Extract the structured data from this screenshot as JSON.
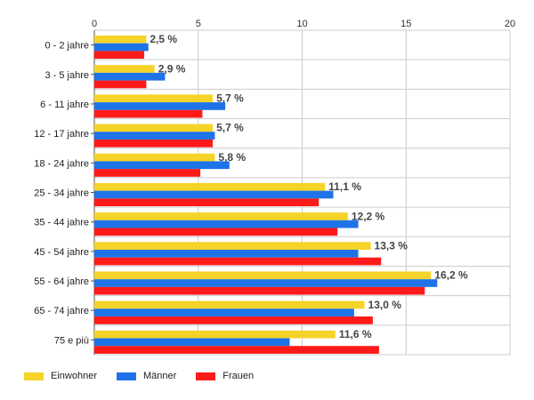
{
  "chart_data": {
    "type": "bar",
    "orientation": "horizontal",
    "categories": [
      "0 - 2 jahre",
      "3 - 5 jahre",
      "6 - 11 jahre",
      "12 - 17 jahre",
      "18 - 24 jahre",
      "25 - 34 jahre",
      "35 - 44 jahre",
      "45 - 54 jahre",
      "55 - 64 jahre",
      "65 - 74 jahre",
      "75 e più"
    ],
    "series": [
      {
        "name": "Einwohner",
        "color": "#f5d328",
        "values": [
          2.5,
          2.9,
          5.7,
          5.7,
          5.8,
          11.1,
          12.2,
          13.3,
          16.2,
          13.0,
          11.6
        ]
      },
      {
        "name": "Männer",
        "color": "#1e73e8",
        "values": [
          2.6,
          3.4,
          6.3,
          5.8,
          6.5,
          11.5,
          12.7,
          12.7,
          16.5,
          12.5,
          9.4
        ]
      },
      {
        "name": "Frauen",
        "color": "#ff1a1a",
        "values": [
          2.4,
          2.5,
          5.2,
          5.7,
          5.1,
          10.8,
          11.7,
          13.8,
          15.9,
          13.4,
          13.7
        ]
      }
    ],
    "data_labels": [
      "2,5 %",
      "2,9 %",
      "5,7 %",
      "5,7 %",
      "5,8 %",
      "11,1 %",
      "12,2 %",
      "13,3 %",
      "16,2 %",
      "13,0 %",
      "11,6 %"
    ],
    "x_ticks": [
      "0",
      "5",
      "10",
      "15",
      "20"
    ],
    "xlim": [
      0,
      20
    ],
    "grid": true,
    "legend_position": "bottom-left",
    "title": "",
    "xlabel": "",
    "ylabel": ""
  }
}
